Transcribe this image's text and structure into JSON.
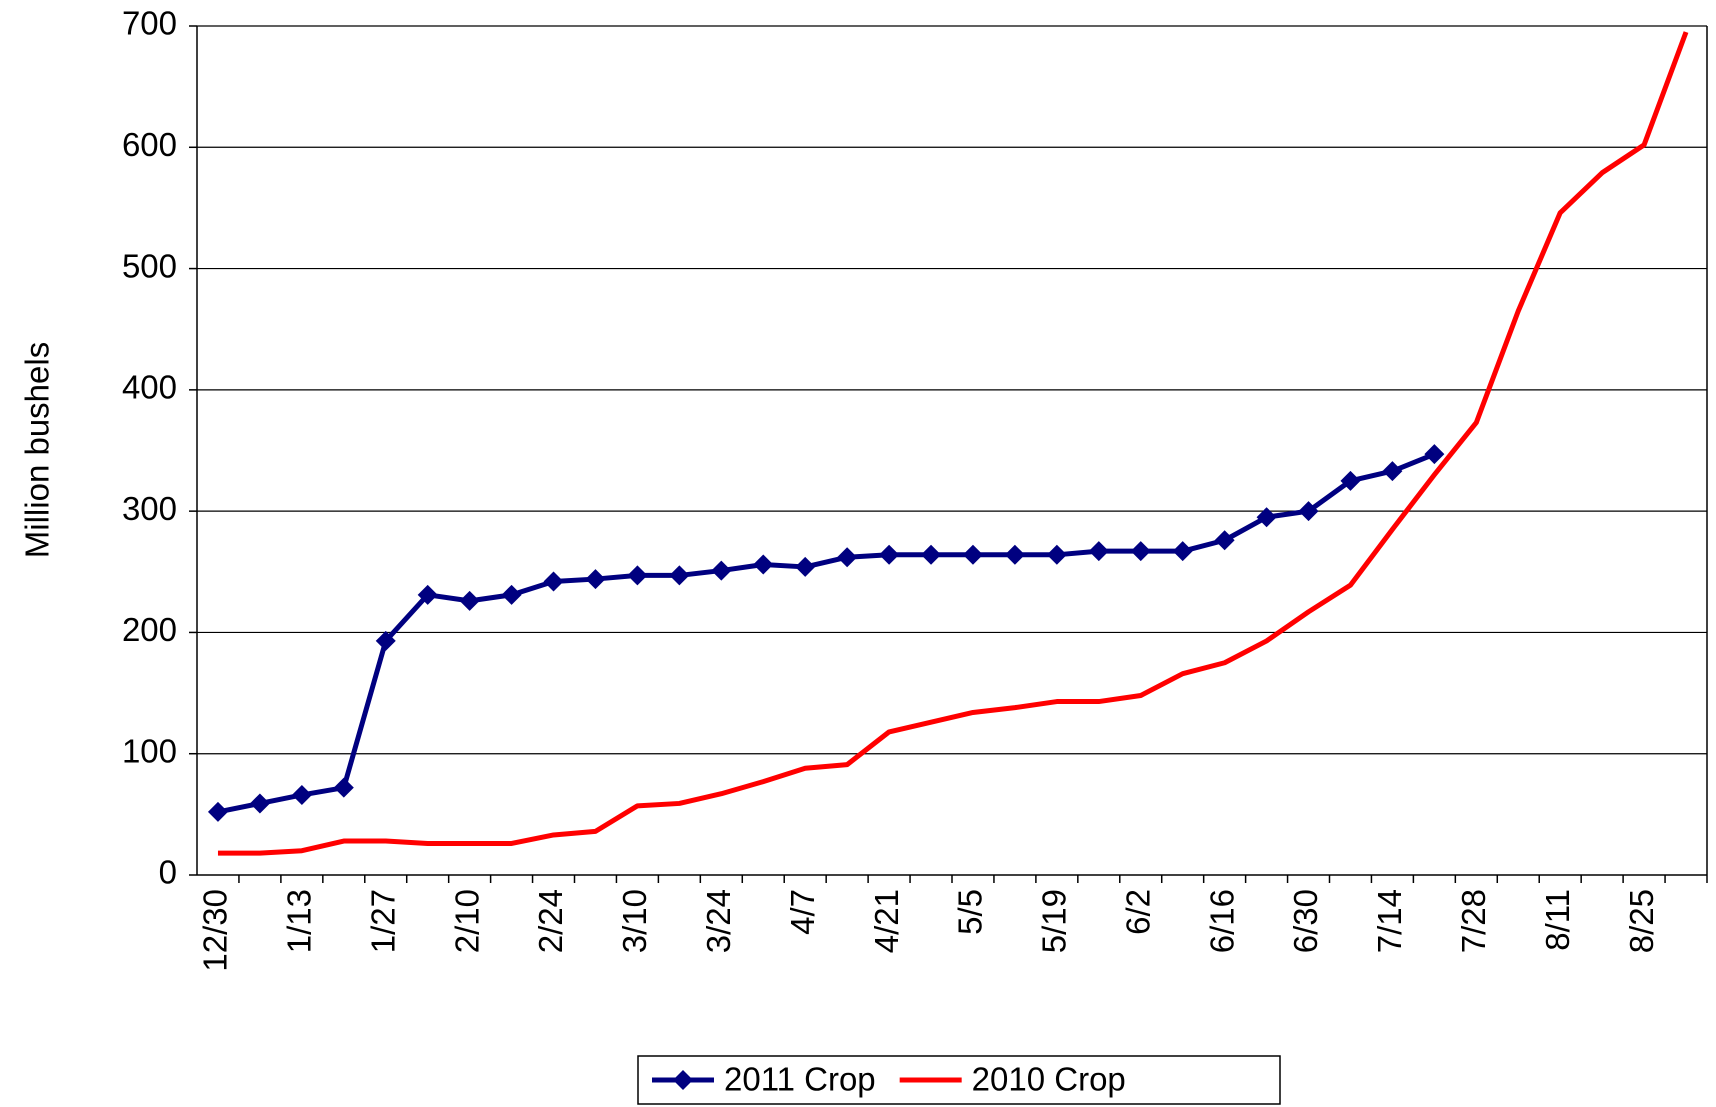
{
  "chart_data": {
    "type": "line",
    "y_label": "Million bushels",
    "categories": [
      "12/30",
      null,
      "1/13",
      null,
      "1/27",
      null,
      "2/10",
      null,
      "2/24",
      null,
      "3/10",
      null,
      "3/24",
      null,
      "4/7",
      null,
      "4/21",
      null,
      "5/5",
      null,
      "5/19",
      null,
      "6/2",
      null,
      "6/16",
      null,
      "6/30",
      null,
      "7/14",
      null,
      "7/28",
      null,
      "8/11",
      null,
      "8/25",
      null
    ],
    "series": [
      {
        "name": "2011 Crop",
        "color": "#000080",
        "marker": "diamond",
        "values": [
          52,
          59,
          66,
          72,
          193,
          231,
          226,
          231,
          242,
          244,
          247,
          247,
          251,
          256,
          254,
          262,
          264,
          264,
          264,
          264,
          264,
          267,
          267,
          267,
          276,
          295,
          300,
          325,
          333,
          347,
          null,
          null,
          null,
          null,
          null,
          null
        ]
      },
      {
        "name": "2010 Crop",
        "color": "#ff0000",
        "values": [
          18,
          18,
          20,
          28,
          28,
          26,
          26,
          26,
          33,
          36,
          57,
          59,
          67,
          77,
          88,
          91,
          118,
          126,
          134,
          138,
          143,
          143,
          148,
          166,
          175,
          193,
          217,
          239,
          285,
          330,
          373,
          465,
          546,
          579,
          602,
          695
        ]
      }
    ],
    "ylim": [
      0,
      700
    ],
    "yticks": [
      0,
      100,
      200,
      300,
      400,
      500,
      600,
      700
    ],
    "grid": true,
    "legend": "bottom"
  }
}
